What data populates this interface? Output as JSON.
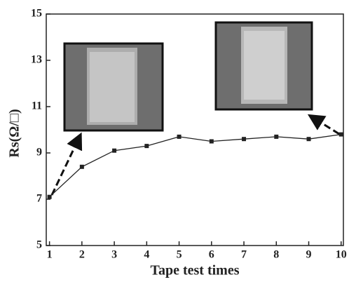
{
  "chart_data": {
    "type": "line",
    "x_label": "Tape test times",
    "y_label": "Rs(Ω/□)",
    "x": [
      1,
      2,
      3,
      4,
      5,
      6,
      7,
      8,
      9,
      10
    ],
    "series": [
      {
        "color": "#222222",
        "values": [
          7.1,
          8.4,
          9.1,
          9.3,
          9.7,
          9.5,
          9.6,
          9.7,
          9.6,
          9.8
        ]
      }
    ],
    "xlim": [
      0.9,
      10.07
    ],
    "xticks": [
      1,
      2,
      3,
      4,
      5,
      6,
      7,
      8,
      9,
      10
    ],
    "ylim": [
      5,
      15
    ],
    "yticks": [
      5,
      7,
      9,
      11,
      13,
      15
    ]
  }
}
